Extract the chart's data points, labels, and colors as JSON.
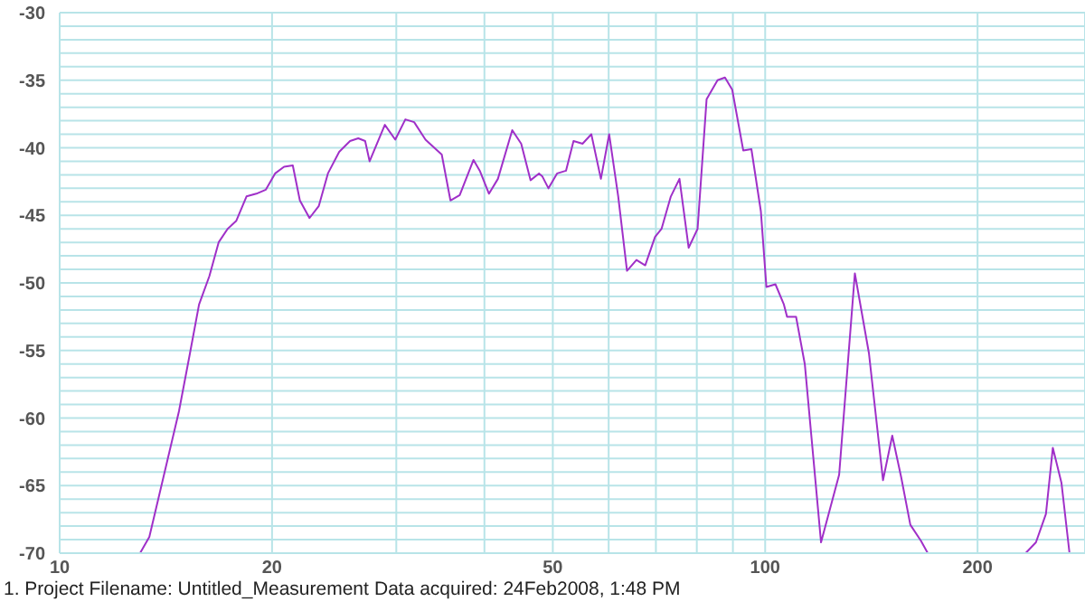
{
  "chart_data": {
    "type": "line",
    "x": [
      13.0,
      13.4,
      14.76,
      15.3,
      15.76,
      16.3,
      16.8,
      17.3,
      17.8,
      18.4,
      19.0,
      19.6,
      20.2,
      20.8,
      21.4,
      21.9,
      22.6,
      23.3,
      24.0,
      24.9,
      25.8,
      26.5,
      27.1,
      27.5,
      28.9,
      29.9,
      30.9,
      31.8,
      33.0,
      33.8,
      34.8,
      35.8,
      36.9,
      38.6,
      39.4,
      40.6,
      41.8,
      43.8,
      45.1,
      46.5,
      47.8,
      48.3,
      49.3,
      50.7,
      52.2,
      53.5,
      55.1,
      56.7,
      58.5,
      60.1,
      61.9,
      63.7,
      65.7,
      67.6,
      69.8,
      71.3,
      73.5,
      75.6,
      77.9,
      80.2,
      82.6,
      85.6,
      87.7,
      89.8,
      93.1,
      95.6,
      98.6,
      100.4,
      103.4,
      106.3,
      107.4,
      110.6,
      113.8,
      120.0,
      127.3,
      134.0,
      140.3,
      146.9,
      151.4,
      155.9,
      160.6,
      166.3,
      170.0,
      200.0,
      234.0,
      242.0,
      250.0,
      255.7,
      263.0,
      270.0
    ],
    "series": [
      {
        "color": "#a030c8",
        "values": [
          -70,
          -68.8,
          -59.5,
          -55.2,
          -51.6,
          -49.5,
          -47.0,
          -46.0,
          -45.4,
          -43.6,
          -43.4,
          -43.1,
          -41.9,
          -41.4,
          -41.3,
          -43.9,
          -45.2,
          -44.3,
          -41.9,
          -40.3,
          -39.5,
          -39.3,
          -39.5,
          -41.0,
          -38.3,
          -39.4,
          -37.9,
          -38.1,
          -39.4,
          -39.9,
          -40.5,
          -43.9,
          -43.5,
          -40.9,
          -41.7,
          -43.4,
          -42.3,
          -38.7,
          -39.7,
          -42.4,
          -41.9,
          -42.1,
          -43.0,
          -41.9,
          -41.7,
          -39.5,
          -39.7,
          -39.0,
          -42.3,
          -39.0,
          -43.6,
          -49.1,
          -48.3,
          -48.7,
          -46.6,
          -46.0,
          -43.6,
          -42.3,
          -47.4,
          -46.0,
          -36.4,
          -35.0,
          -34.8,
          -35.7,
          -40.2,
          -40.1,
          -44.7,
          -50.3,
          -50.1,
          -51.6,
          -52.5,
          -52.5,
          -56.0,
          -69.2,
          -64.2,
          -49.3,
          -55.2,
          -64.6,
          -61.3,
          -64.4,
          -67.9,
          -69.1,
          -70,
          null,
          -70,
          -69.2,
          -67.1,
          -62.2,
          -64.8,
          -70
        ]
      }
    ],
    "log": "x",
    "xlim": [
      10,
      284
    ],
    "xticks": [
      10,
      20,
      {
        "value": 30,
        "label": null
      },
      {
        "value": 40,
        "label": null
      },
      50,
      {
        "value": 60,
        "label": null
      },
      {
        "value": 70,
        "label": null
      },
      {
        "value": 80,
        "label": null
      },
      {
        "value": 90,
        "label": null
      },
      100,
      200
    ],
    "ylim": [
      -70,
      -30
    ],
    "yticks": [
      -70,
      {
        "value": -69,
        "label": null
      },
      {
        "value": -68,
        "label": null
      },
      {
        "value": -67,
        "label": null
      },
      {
        "value": -66,
        "label": null
      },
      -65,
      {
        "value": -64,
        "label": null
      },
      {
        "value": -63,
        "label": null
      },
      {
        "value": -62,
        "label": null
      },
      {
        "value": -61,
        "label": null
      },
      -60,
      {
        "value": -59,
        "label": null
      },
      {
        "value": -58,
        "label": null
      },
      {
        "value": -57,
        "label": null
      },
      {
        "value": -56,
        "label": null
      },
      -55,
      {
        "value": -54,
        "label": null
      },
      {
        "value": -53,
        "label": null
      },
      {
        "value": -52,
        "label": null
      },
      {
        "value": -51,
        "label": null
      },
      -50,
      {
        "value": -49,
        "label": null
      },
      {
        "value": -48,
        "label": null
      },
      {
        "value": -47,
        "label": null
      },
      {
        "value": -46,
        "label": null
      },
      -45,
      {
        "value": -44,
        "label": null
      },
      {
        "value": -43,
        "label": null
      },
      {
        "value": -42,
        "label": null
      },
      {
        "value": -41,
        "label": null
      },
      -40,
      {
        "value": -39,
        "label": null
      },
      {
        "value": -38,
        "label": null
      },
      {
        "value": -37,
        "label": null
      },
      {
        "value": -36,
        "label": null
      },
      -35,
      {
        "value": -34,
        "label": null
      },
      {
        "value": -33,
        "label": null
      },
      {
        "value": -32,
        "label": null
      },
      {
        "value": -31,
        "label": null
      },
      -30
    ],
    "grid": true,
    "legend": false,
    "marker": "none",
    "line_style": "solid",
    "annotations": [
      "1. Project Filename: Untitled_Measurement",
      "Data acquired: 24Feb2008, 1:48 PM"
    ]
  }
}
